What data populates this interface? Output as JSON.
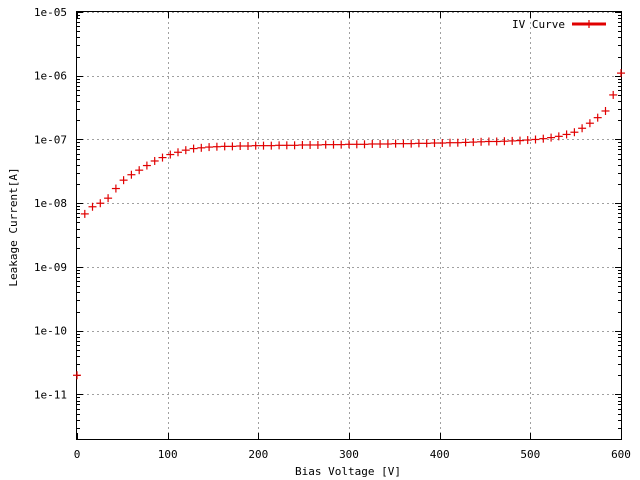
{
  "chart_data": {
    "type": "scatter",
    "title": "",
    "xlabel": "Bias Voltage [V]",
    "ylabel": "Leakage Current[A]",
    "xlim": [
      0,
      600
    ],
    "ylim": [
      2e-12,
      1e-05
    ],
    "yscale": "log",
    "grid": true,
    "legend_position": "top-right",
    "x_ticks": [
      "0",
      "100",
      "200",
      "300",
      "400",
      "500",
      "600"
    ],
    "y_ticks": [
      "1e-05",
      "1e-06",
      "1e-07",
      "1e-08",
      "1e-09",
      "1e-10",
      "1e-11"
    ],
    "series": [
      {
        "name": "IV Curve",
        "color": "#e00000",
        "marker": "plus",
        "x": [
          0,
          8.6,
          17.1,
          25.7,
          34.3,
          42.9,
          51.4,
          60,
          68.6,
          77.1,
          85.7,
          94.3,
          102.9,
          111.4,
          120,
          128.6,
          137.1,
          145.7,
          154.3,
          162.9,
          171.4,
          180,
          188.6,
          197.1,
          205.7,
          214.3,
          222.9,
          231.4,
          240,
          248.6,
          257.1,
          265.7,
          274.3,
          282.9,
          291.4,
          300,
          308.6,
          317.1,
          325.7,
          334.3,
          342.9,
          351.4,
          360,
          368.6,
          377.1,
          385.7,
          394.3,
          402.9,
          411.4,
          420,
          428.6,
          437.1,
          445.7,
          454.3,
          462.9,
          471.4,
          480,
          488.6,
          497.1,
          505.7,
          514.3,
          522.9,
          531.4,
          540,
          548.6,
          557.1,
          565.7,
          574.3,
          582.9,
          591.4,
          600
        ],
        "y": [
          2e-11,
          6.8e-09,
          8.8e-09,
          1e-08,
          1.2e-08,
          1.7e-08,
          2.3e-08,
          2.8e-08,
          3.3e-08,
          3.9e-08,
          4.6e-08,
          5.2e-08,
          5.8e-08,
          6.3e-08,
          6.8e-08,
          7.2e-08,
          7.4e-08,
          7.6e-08,
          7.7e-08,
          7.8e-08,
          7.8e-08,
          7.9e-08,
          7.9e-08,
          8e-08,
          8e-08,
          8e-08,
          8.1e-08,
          8.1e-08,
          8.1e-08,
          8.2e-08,
          8.2e-08,
          8.2e-08,
          8.3e-08,
          8.3e-08,
          8.3e-08,
          8.4e-08,
          8.4e-08,
          8.4e-08,
          8.5e-08,
          8.5e-08,
          8.5e-08,
          8.6e-08,
          8.6e-08,
          8.6e-08,
          8.7e-08,
          8.7e-08,
          8.8e-08,
          8.8e-08,
          8.9e-08,
          8.9e-08,
          9e-08,
          9.1e-08,
          9.2e-08,
          9.3e-08,
          9.3e-08,
          9.4e-08,
          9.5e-08,
          9.6e-08,
          9.8e-08,
          1e-07,
          1.03e-07,
          1.07e-07,
          1.12e-07,
          1.2e-07,
          1.3e-07,
          1.5e-07,
          1.8e-07,
          2.2e-07,
          2.8e-07,
          5e-07,
          1.1e-06
        ]
      }
    ]
  }
}
